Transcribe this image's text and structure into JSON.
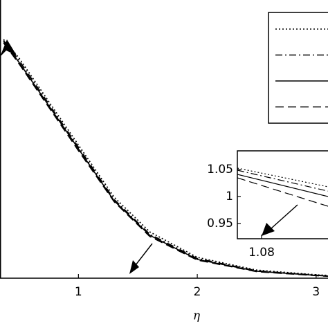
{
  "chart_data": [
    {
      "type": "line",
      "xlabel": "η",
      "x": [
        0.37,
        0.5,
        0.7,
        1.0,
        1.3,
        1.6,
        2.0,
        2.5,
        3.0,
        3.1
      ],
      "xlim": [
        0.34,
        3.1
      ],
      "xticks": [
        1,
        2,
        3
      ],
      "ylim": [
        0,
        1.2
      ],
      "legend": "upper right",
      "series": [
        {
          "color": "#000000",
          "style": "dotted",
          "values": [
            1.03,
            0.95,
            0.8,
            0.575,
            0.35,
            0.2,
            0.09,
            0.035,
            0.015,
            0.012
          ]
        },
        {
          "color": "#000000",
          "style": "dashdot",
          "values": [
            1.025,
            0.94,
            0.79,
            0.565,
            0.34,
            0.19,
            0.085,
            0.032,
            0.013,
            0.01
          ]
        },
        {
          "color": "#000000",
          "style": "solid",
          "values": [
            1.021,
            0.931,
            0.782,
            0.558,
            0.334,
            0.185,
            0.081,
            0.03,
            0.012,
            0.009
          ]
        },
        {
          "color": "#000000",
          "style": "dashed",
          "values": [
            1.015,
            0.925,
            0.775,
            0.55,
            0.33,
            0.18,
            0.078,
            0.028,
            0.011,
            0.008
          ]
        }
      ]
    },
    {
      "type": "line",
      "x": [
        1.073,
        1.0992
      ],
      "xlim": [
        1.073,
        1.0992
      ],
      "xticks": [
        1.08
      ],
      "ylim": [
        0.9218,
        1.0846
      ],
      "yticks": [
        0.95,
        1,
        1.05
      ],
      "series": [
        {
          "color": "#000000",
          "style": "dotted",
          "values": [
            1.0526,
            1.018
          ]
        },
        {
          "color": "#000000",
          "style": "dashdot",
          "values": [
            1.0487,
            1.01
          ]
        },
        {
          "color": "#000000",
          "style": "solid",
          "values": [
            1.041,
            1.0
          ]
        },
        {
          "color": "#000000",
          "style": "dashed",
          "values": [
            1.0346,
            0.982
          ]
        }
      ]
    }
  ]
}
